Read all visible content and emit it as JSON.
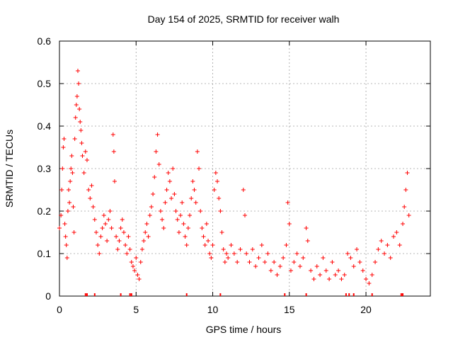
{
  "chart_data": {
    "type": "scatter",
    "title": "Day 154 of 2025, SRMTID for receiver walh",
    "xlabel": "GPS time / hours",
    "ylabel": "SRMTID / TECUs",
    "xlim": [
      0,
      24.2
    ],
    "ylim": [
      0,
      0.6
    ],
    "xticks": [
      0,
      5,
      10,
      15,
      20
    ],
    "yticks": [
      0,
      0.1,
      0.2,
      0.3,
      0.4,
      0.5,
      0.6
    ],
    "grid": true,
    "marker": "+",
    "color": "#ff0000",
    "x_range_of_data": [
      0,
      22.8
    ],
    "series": [
      {
        "name": "SRMTID",
        "points": [
          [
            0.0,
            0.16
          ],
          [
            0.1,
            0.19
          ],
          [
            0.15,
            0.25
          ],
          [
            0.2,
            0.3
          ],
          [
            0.25,
            0.35
          ],
          [
            0.3,
            0.37
          ],
          [
            0.35,
            0.17
          ],
          [
            0.4,
            0.14
          ],
          [
            0.45,
            0.12
          ],
          [
            0.5,
            0.09
          ],
          [
            0.55,
            0.2
          ],
          [
            0.6,
            0.25
          ],
          [
            0.65,
            0.22
          ],
          [
            0.7,
            0.27
          ],
          [
            0.75,
            0.3
          ],
          [
            0.8,
            0.33
          ],
          [
            0.85,
            0.29
          ],
          [
            0.9,
            0.21
          ],
          [
            0.95,
            0.15
          ],
          [
            1.0,
            0.37
          ],
          [
            1.05,
            0.42
          ],
          [
            1.1,
            0.45
          ],
          [
            1.15,
            0.47
          ],
          [
            1.2,
            0.53
          ],
          [
            1.25,
            0.5
          ],
          [
            1.3,
            0.44
          ],
          [
            1.35,
            0.41
          ],
          [
            1.4,
            0.39
          ],
          [
            1.45,
            0.36
          ],
          [
            1.5,
            0.33
          ],
          [
            1.6,
            0.29
          ],
          [
            1.7,
            0.34
          ],
          [
            1.8,
            0.32
          ],
          [
            1.9,
            0.25
          ],
          [
            2.0,
            0.23
          ],
          [
            2.1,
            0.26
          ],
          [
            2.2,
            0.21
          ],
          [
            2.3,
            0.18
          ],
          [
            2.4,
            0.15
          ],
          [
            2.5,
            0.12
          ],
          [
            2.6,
            0.1
          ],
          [
            2.7,
            0.14
          ],
          [
            2.8,
            0.16
          ],
          [
            2.9,
            0.19
          ],
          [
            3.0,
            0.17
          ],
          [
            3.1,
            0.13
          ],
          [
            3.2,
            0.18
          ],
          [
            3.3,
            0.2
          ],
          [
            3.4,
            0.16
          ],
          [
            3.5,
            0.38
          ],
          [
            3.55,
            0.34
          ],
          [
            3.6,
            0.27
          ],
          [
            3.7,
            0.14
          ],
          [
            3.8,
            0.11
          ],
          [
            3.9,
            0.13
          ],
          [
            4.0,
            0.16
          ],
          [
            4.1,
            0.18
          ],
          [
            4.2,
            0.15
          ],
          [
            4.3,
            0.12
          ],
          [
            4.4,
            0.1
          ],
          [
            4.5,
            0.14
          ],
          [
            4.6,
            0.11
          ],
          [
            4.7,
            0.08
          ],
          [
            4.8,
            0.07
          ],
          [
            4.9,
            0.06
          ],
          [
            5.0,
            0.09
          ],
          [
            5.1,
            0.05
          ],
          [
            5.2,
            0.04
          ],
          [
            5.3,
            0.08
          ],
          [
            5.4,
            0.11
          ],
          [
            5.5,
            0.13
          ],
          [
            5.6,
            0.15
          ],
          [
            5.7,
            0.17
          ],
          [
            5.8,
            0.14
          ],
          [
            5.9,
            0.19
          ],
          [
            6.0,
            0.21
          ],
          [
            6.1,
            0.24
          ],
          [
            6.2,
            0.28
          ],
          [
            6.3,
            0.34
          ],
          [
            6.4,
            0.38
          ],
          [
            6.5,
            0.31
          ],
          [
            6.6,
            0.2
          ],
          [
            6.7,
            0.18
          ],
          [
            6.8,
            0.16
          ],
          [
            6.9,
            0.22
          ],
          [
            7.0,
            0.25
          ],
          [
            7.1,
            0.29
          ],
          [
            7.2,
            0.27
          ],
          [
            7.3,
            0.23
          ],
          [
            7.4,
            0.3
          ],
          [
            7.5,
            0.24
          ],
          [
            7.6,
            0.2
          ],
          [
            7.7,
            0.18
          ],
          [
            7.8,
            0.15
          ],
          [
            7.9,
            0.19
          ],
          [
            8.0,
            0.22
          ],
          [
            8.1,
            0.17
          ],
          [
            8.2,
            0.14
          ],
          [
            8.3,
            0.12
          ],
          [
            8.4,
            0.16
          ],
          [
            8.5,
            0.19
          ],
          [
            8.6,
            0.23
          ],
          [
            8.7,
            0.27
          ],
          [
            8.8,
            0.25
          ],
          [
            8.9,
            0.22
          ],
          [
            9.0,
            0.34
          ],
          [
            9.1,
            0.3
          ],
          [
            9.2,
            0.2
          ],
          [
            9.3,
            0.16
          ],
          [
            9.4,
            0.14
          ],
          [
            9.5,
            0.12
          ],
          [
            9.6,
            0.17
          ],
          [
            9.7,
            0.13
          ],
          [
            9.8,
            0.1
          ],
          [
            9.9,
            0.09
          ],
          [
            10.0,
            0.12
          ],
          [
            10.1,
            0.25
          ],
          [
            10.2,
            0.29
          ],
          [
            10.3,
            0.27
          ],
          [
            10.4,
            0.23
          ],
          [
            10.5,
            0.2
          ],
          [
            10.6,
            0.15
          ],
          [
            10.7,
            0.11
          ],
          [
            10.8,
            0.08
          ],
          [
            10.9,
            0.1
          ],
          [
            11.0,
            0.09
          ],
          [
            11.2,
            0.12
          ],
          [
            11.4,
            0.1
          ],
          [
            11.6,
            0.08
          ],
          [
            11.8,
            0.11
          ],
          [
            12.0,
            0.25
          ],
          [
            12.1,
            0.19
          ],
          [
            12.2,
            0.1
          ],
          [
            12.4,
            0.08
          ],
          [
            12.6,
            0.11
          ],
          [
            12.8,
            0.07
          ],
          [
            13.0,
            0.09
          ],
          [
            13.2,
            0.12
          ],
          [
            13.4,
            0.08
          ],
          [
            13.6,
            0.1
          ],
          [
            13.8,
            0.06
          ],
          [
            14.0,
            0.08
          ],
          [
            14.2,
            0.05
          ],
          [
            14.4,
            0.07
          ],
          [
            14.6,
            0.09
          ],
          [
            14.8,
            0.12
          ],
          [
            14.9,
            0.22
          ],
          [
            15.0,
            0.17
          ],
          [
            15.1,
            0.06
          ],
          [
            15.3,
            0.08
          ],
          [
            15.5,
            0.1
          ],
          [
            15.7,
            0.07
          ],
          [
            15.9,
            0.09
          ],
          [
            16.1,
            0.16
          ],
          [
            16.2,
            0.13
          ],
          [
            16.4,
            0.06
          ],
          [
            16.6,
            0.04
          ],
          [
            16.8,
            0.07
          ],
          [
            17.0,
            0.05
          ],
          [
            17.2,
            0.09
          ],
          [
            17.4,
            0.06
          ],
          [
            17.6,
            0.04
          ],
          [
            17.8,
            0.08
          ],
          [
            18.0,
            0.05
          ],
          [
            18.2,
            0.06
          ],
          [
            18.4,
            0.04
          ],
          [
            18.6,
            0.05
          ],
          [
            18.8,
            0.1
          ],
          [
            19.0,
            0.09
          ],
          [
            19.2,
            0.07
          ],
          [
            19.4,
            0.11
          ],
          [
            19.6,
            0.08
          ],
          [
            19.8,
            0.06
          ],
          [
            20.0,
            0.04
          ],
          [
            20.2,
            0.03
          ],
          [
            20.4,
            0.05
          ],
          [
            20.6,
            0.08
          ],
          [
            20.8,
            0.11
          ],
          [
            21.0,
            0.13
          ],
          [
            21.2,
            0.1
          ],
          [
            21.4,
            0.12
          ],
          [
            21.6,
            0.09
          ],
          [
            21.8,
            0.14
          ],
          [
            22.0,
            0.15
          ],
          [
            22.2,
            0.12
          ],
          [
            22.4,
            0.17
          ],
          [
            22.5,
            0.21
          ],
          [
            22.6,
            0.25
          ],
          [
            22.7,
            0.29
          ],
          [
            22.8,
            0.19
          ]
        ]
      }
    ],
    "rug_marks_x": [
      1.7,
      1.8,
      2.3,
      4.0,
      4.6,
      4.7,
      8.3,
      10.5,
      14.7,
      16.1,
      18.7,
      18.9,
      19.2,
      20.4,
      22.3,
      22.4
    ]
  }
}
